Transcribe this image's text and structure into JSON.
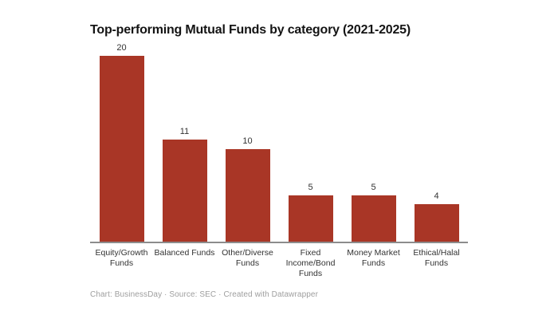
{
  "title": "Top-performing Mutual Funds by category (2021-2025)",
  "footer": "Chart: BusinessDay · Source: SEC · Created with Datawrapper",
  "colors": {
    "bar": "#a93626",
    "axis": "#8c8c8c",
    "title_text": "#141414",
    "label_text": "#333333",
    "footer_text": "#9e9e9e",
    "background": "#ffffff"
  },
  "chart_data": {
    "type": "bar",
    "title": "Top-performing Mutual Funds by category (2021-2025)",
    "categories": [
      "Equity/Growth Funds",
      "Balanced Funds",
      "Other/Diverse Funds",
      "Fixed Income/Bond Funds",
      "Money Market Funds",
      "Ethical/Halal Funds"
    ],
    "values": [
      20,
      11,
      10,
      5,
      5,
      4
    ],
    "value_labels_shown": true,
    "xlabel": "",
    "ylabel": "",
    "ylim": [
      0,
      20
    ],
    "grid": false,
    "legend": "none",
    "bar_color": "#a93626"
  }
}
